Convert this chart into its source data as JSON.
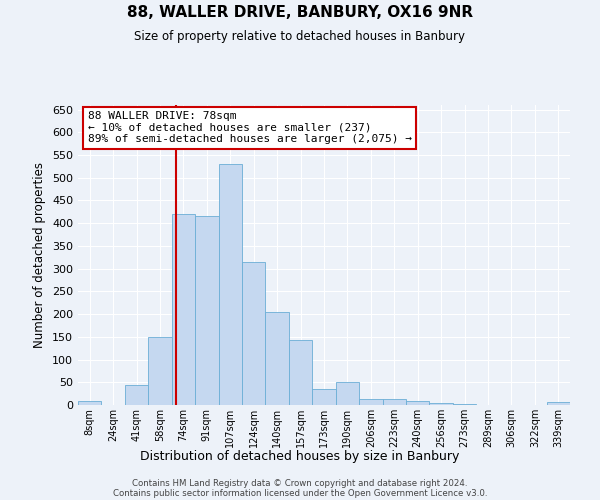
{
  "title": "88, WALLER DRIVE, BANBURY, OX16 9NR",
  "subtitle": "Size of property relative to detached houses in Banbury",
  "xlabel": "Distribution of detached houses by size in Banbury",
  "ylabel": "Number of detached properties",
  "bin_labels": [
    "8sqm",
    "24sqm",
    "41sqm",
    "58sqm",
    "74sqm",
    "91sqm",
    "107sqm",
    "124sqm",
    "140sqm",
    "157sqm",
    "173sqm",
    "190sqm",
    "206sqm",
    "223sqm",
    "240sqm",
    "256sqm",
    "273sqm",
    "289sqm",
    "306sqm",
    "322sqm",
    "339sqm"
  ],
  "bar_heights": [
    8,
    0,
    45,
    150,
    420,
    415,
    530,
    315,
    205,
    143,
    35,
    50,
    14,
    13,
    8,
    5,
    2,
    1,
    0,
    0,
    6
  ],
  "bar_color": "#c5d8f0",
  "bar_edge_color": "#6baed6",
  "vline_x_index": 4,
  "vline_color": "#cc0000",
  "annotation_title": "88 WALLER DRIVE: 78sqm",
  "annotation_line1": "← 10% of detached houses are smaller (237)",
  "annotation_line2": "89% of semi-detached houses are larger (2,075) →",
  "annotation_box_color": "#ffffff",
  "annotation_box_edge": "#cc0000",
  "ylim": [
    0,
    660
  ],
  "yticks": [
    0,
    50,
    100,
    150,
    200,
    250,
    300,
    350,
    400,
    450,
    500,
    550,
    600,
    650
  ],
  "footer1": "Contains HM Land Registry data © Crown copyright and database right 2024.",
  "footer2": "Contains public sector information licensed under the Open Government Licence v3.0.",
  "bg_color": "#edf2f9",
  "grid_color": "#ffffff"
}
